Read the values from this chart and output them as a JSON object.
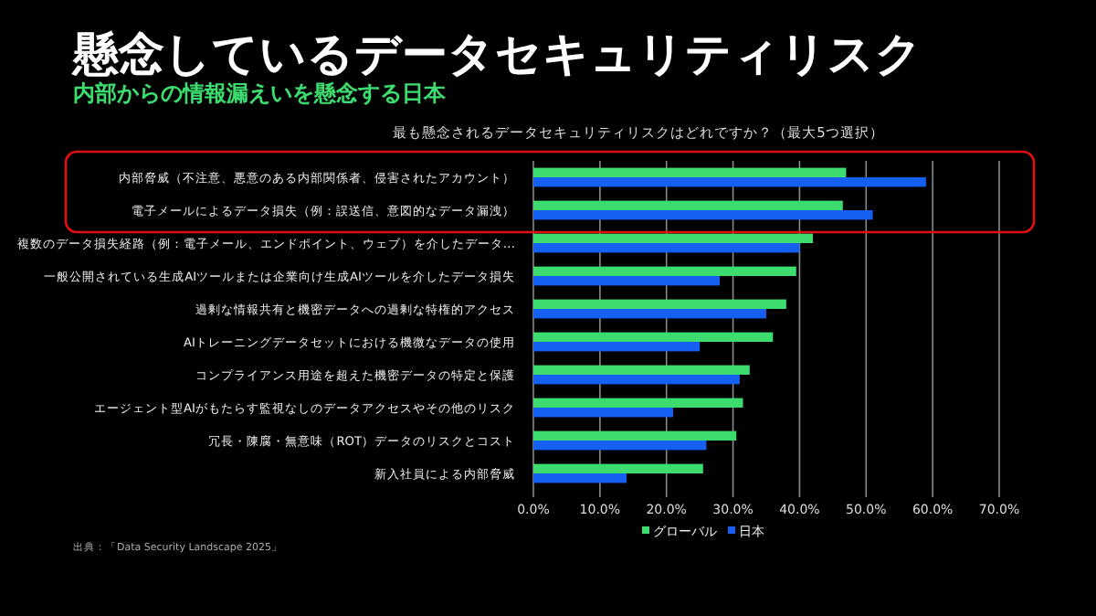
{
  "chart_data": {
    "type": "bar",
    "orientation": "horizontal",
    "title": "最も懸念されるデータセキュリティリスクはどれですか？（最大5つ選択）",
    "subtitle": "懸念しているデータセキュリティリスク",
    "annotations": [
      "内部からの情報漏えいを懸念する日本",
      "出典：「Data Security Landscape 2025」"
    ],
    "categories": [
      "内部脅威（不注意、悪意のある内部関係者、侵害されたアカウント）",
      "電子メールによるデータ損失（例：誤送信、意図的なデータ漏洩）",
      "複数のデータ損失経路（例：電子メール、エンドポイント、ウェブ）を介したデータ…",
      "一般公開されている生成AIツールまたは企業向け生成AIツールを介したデータ損失",
      "過剰な情報共有と機密データへの過剰な特権的アクセス",
      "AIトレーニングデータセットにおける機微なデータの使用",
      "コンプライアンス用途を超えた機密データの特定と保護",
      "エージェント型AIがもたらす監視なしのデータアクセスやその他のリスク",
      "冗長・陳腐・無意味（ROT）データのリスクとコスト",
      "新入社員による内部脅威"
    ],
    "series": [
      {
        "name": "グローバル",
        "color": "#3ddc6e",
        "values": [
          47,
          46.5,
          42,
          39.5,
          38,
          36,
          32.5,
          31.5,
          30.5,
          25.5
        ]
      },
      {
        "name": "日本",
        "color": "#1560f0",
        "values": [
          59,
          51,
          40,
          28,
          35,
          25,
          31,
          21,
          26,
          14
        ]
      }
    ],
    "xlim": [
      0,
      70
    ],
    "xticks": [
      {
        "value": 0,
        "label": "0.0%"
      },
      {
        "value": 10,
        "label": "10.0%"
      },
      {
        "value": 20,
        "label": "20.0%"
      },
      {
        "value": 30,
        "label": "30.0%"
      },
      {
        "value": 40,
        "label": "40.0%"
      },
      {
        "value": 50,
        "label": "50.0%"
      },
      {
        "value": 60,
        "label": "60.0%"
      },
      {
        "value": 70,
        "label": "70.0%"
      }
    ],
    "grid": "x",
    "legend": "bottom"
  }
}
